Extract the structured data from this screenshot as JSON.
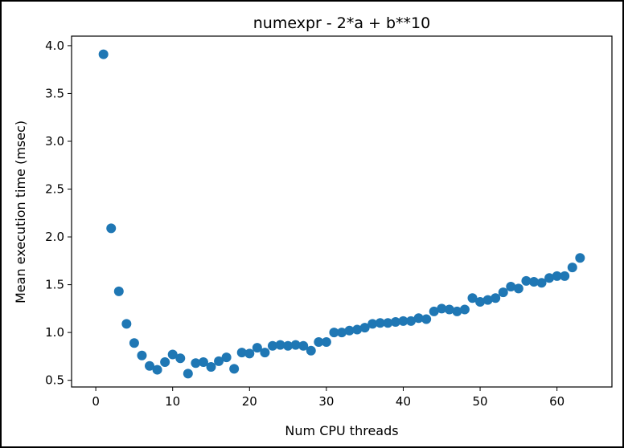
{
  "chart_data": {
    "type": "scatter",
    "title": "numexpr - 2*a + b**10",
    "xlabel": "Num CPU threads",
    "ylabel": "Mean execution time (msec)",
    "xlim": [
      -3.15,
      67.15
    ],
    "ylim": [
      0.43,
      4.1
    ],
    "xticks": [
      0,
      10,
      20,
      30,
      40,
      50,
      60
    ],
    "yticks": [
      0.5,
      1.0,
      1.5,
      2.0,
      2.5,
      3.0,
      3.5,
      4.0
    ],
    "xtick_labels": [
      "0",
      "10",
      "20",
      "30",
      "40",
      "50",
      "60"
    ],
    "ytick_labels": [
      "0.5",
      "1.0",
      "1.5",
      "2.0",
      "2.5",
      "3.0",
      "3.5",
      "4.0"
    ],
    "grid": false,
    "color": "#1f77b4",
    "x": [
      1,
      2,
      3,
      4,
      5,
      6,
      7,
      8,
      9,
      10,
      11,
      12,
      13,
      14,
      15,
      16,
      17,
      18,
      19,
      20,
      21,
      22,
      23,
      24,
      25,
      26,
      27,
      28,
      29,
      30,
      31,
      32,
      33,
      34,
      35,
      36,
      37,
      38,
      39,
      40,
      41,
      42,
      43,
      44,
      45,
      46,
      47,
      48,
      49,
      50,
      51,
      52,
      53,
      54,
      55,
      56,
      57,
      58,
      59,
      60,
      61,
      62,
      63
    ],
    "y": [
      3.91,
      2.09,
      1.43,
      1.09,
      0.89,
      0.76,
      0.65,
      0.61,
      0.69,
      0.77,
      0.73,
      0.57,
      0.68,
      0.69,
      0.64,
      0.7,
      0.74,
      0.62,
      0.79,
      0.78,
      0.84,
      0.79,
      0.86,
      0.87,
      0.86,
      0.87,
      0.86,
      0.81,
      0.9,
      0.9,
      1.0,
      1.0,
      1.02,
      1.03,
      1.05,
      1.09,
      1.1,
      1.1,
      1.11,
      1.12,
      1.12,
      1.15,
      1.14,
      1.22,
      1.25,
      1.24,
      1.22,
      1.24,
      1.36,
      1.32,
      1.34,
      1.36,
      1.42,
      1.48,
      1.46,
      1.54,
      1.53,
      1.52,
      1.57,
      1.59,
      1.59,
      1.68,
      1.78
    ]
  }
}
